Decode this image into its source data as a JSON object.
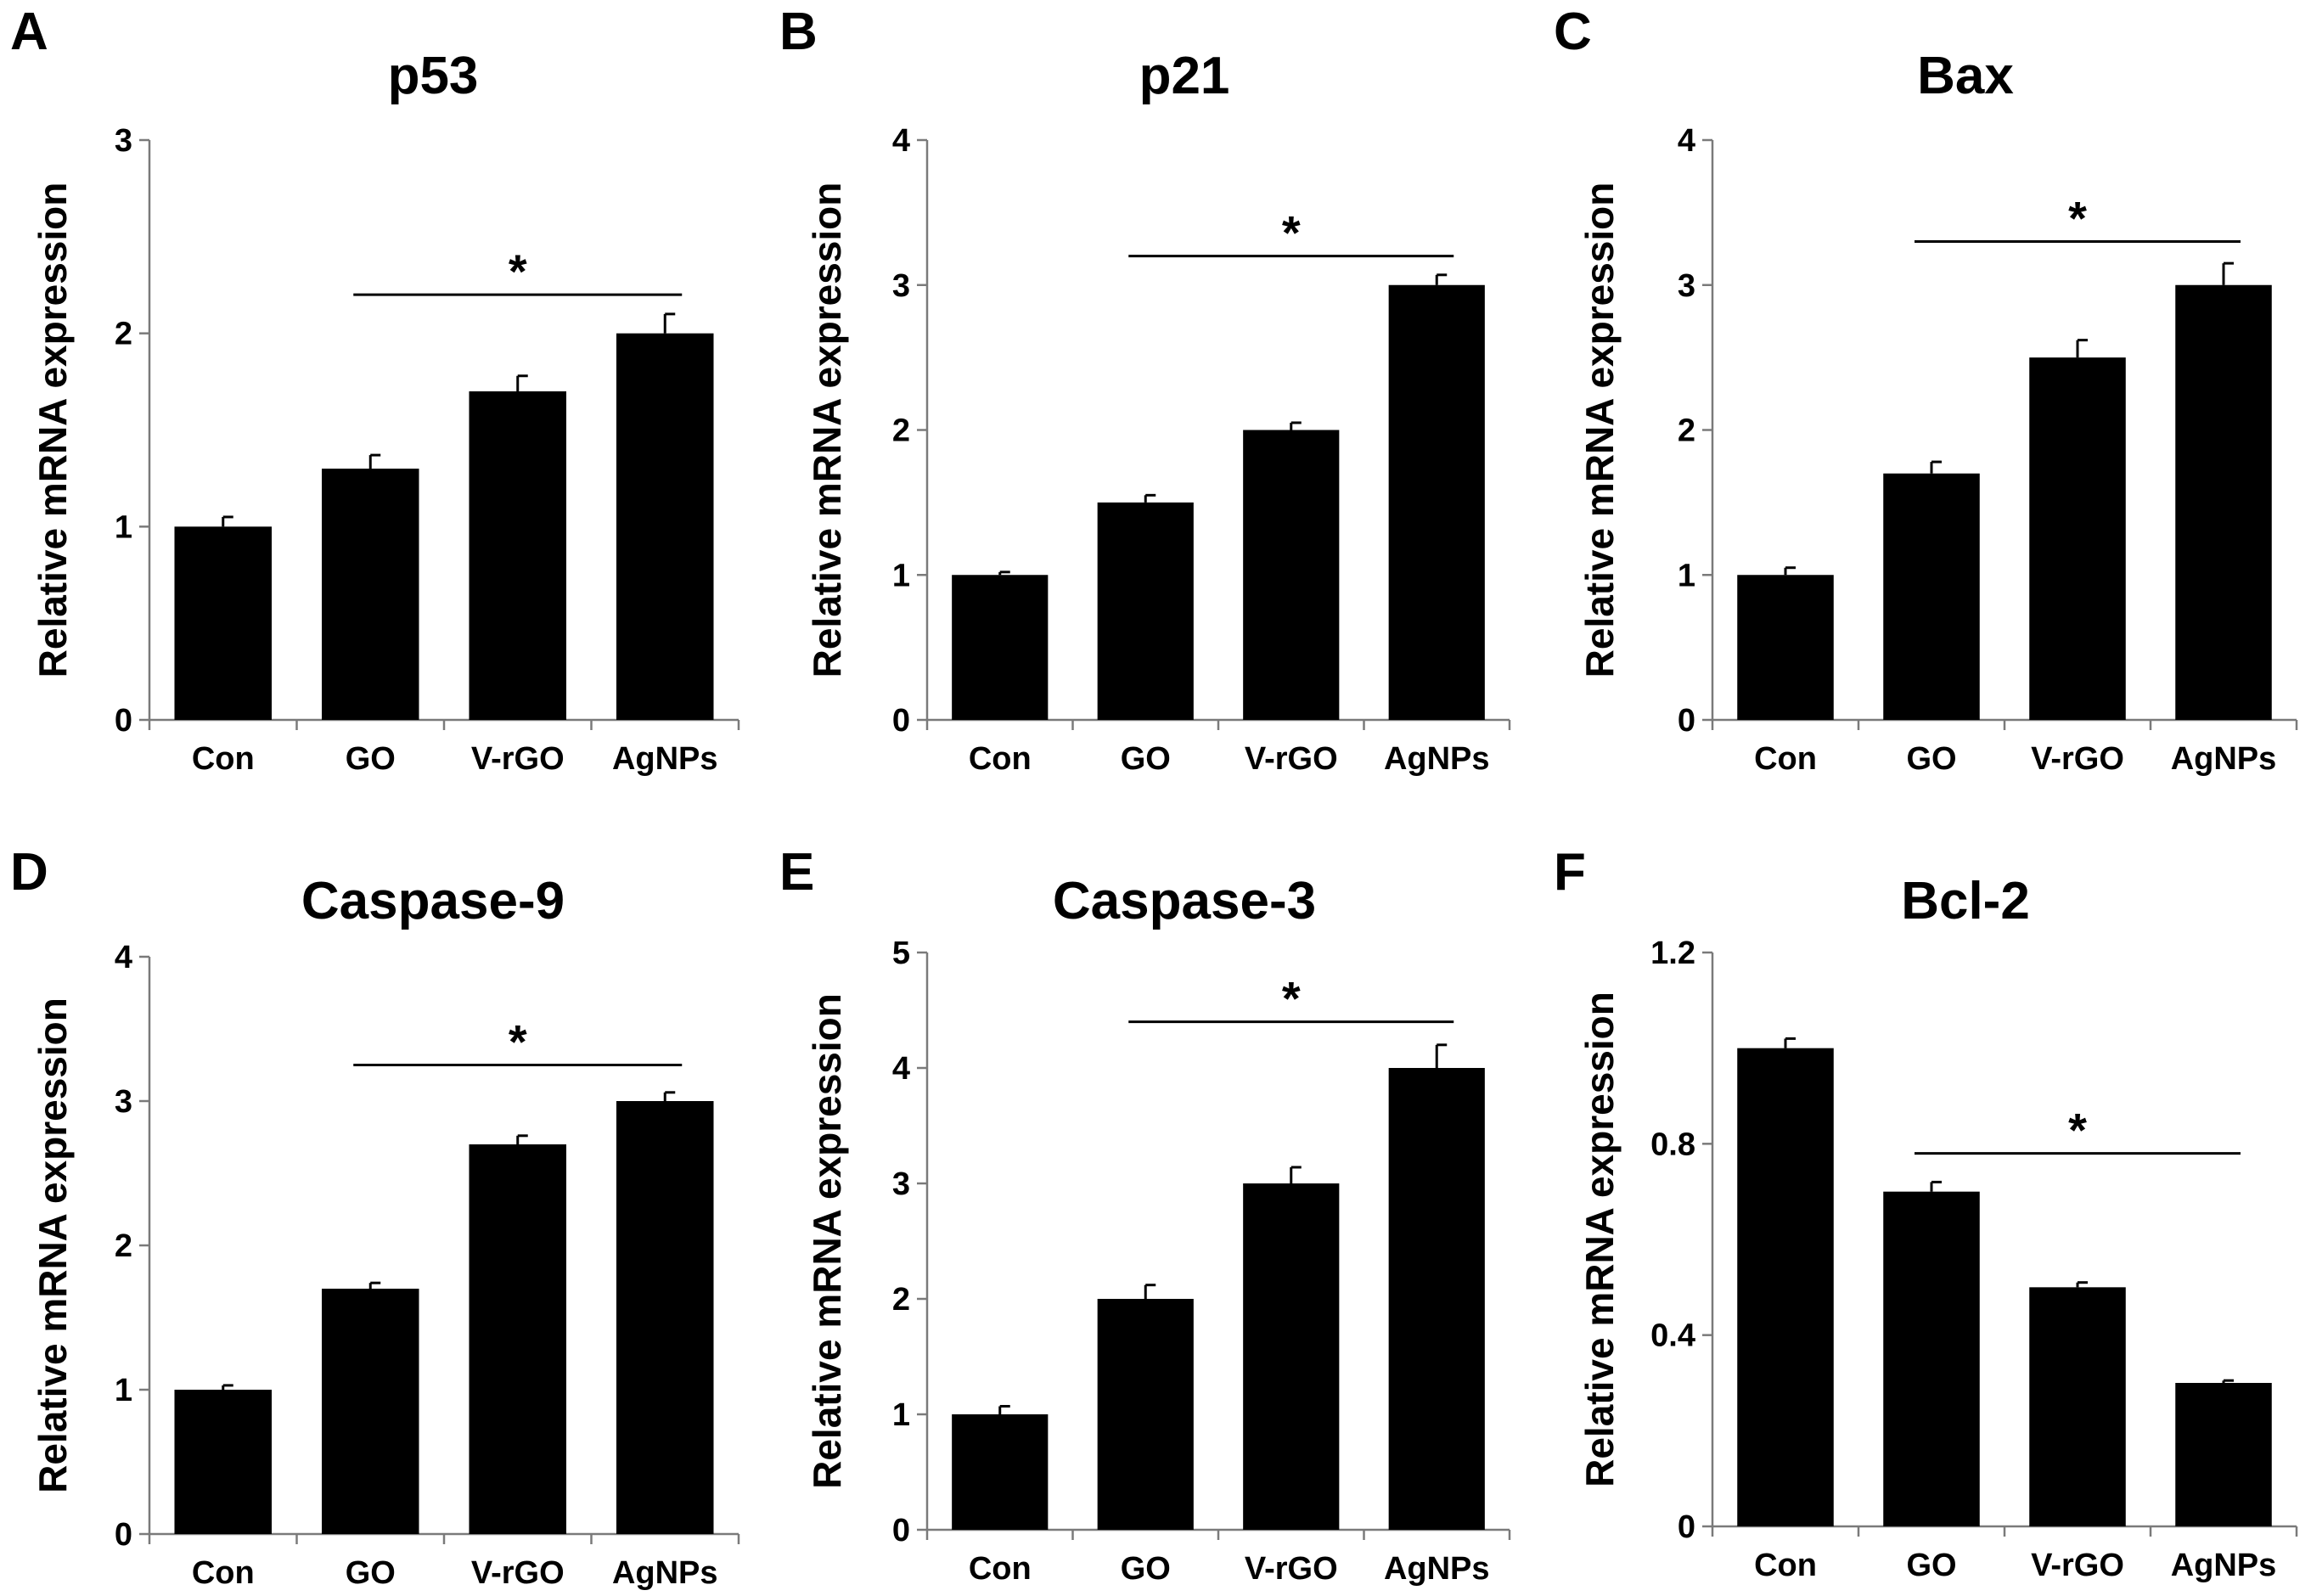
{
  "chart_data": [
    {
      "panel": "A",
      "type": "bar",
      "title": "p53",
      "ylabel": "Relative mRNA expression",
      "categories": [
        "Con",
        "GO",
        "V-rGO",
        "AgNPs"
      ],
      "values": [
        1.0,
        1.3,
        1.7,
        2.0
      ],
      "errors": [
        0.05,
        0.07,
        0.08,
        0.1
      ],
      "ylim": [
        0,
        3
      ],
      "yticks": [
        "0",
        "1",
        "2",
        "3"
      ],
      "significance": {
        "label": "*",
        "from": "GO",
        "to": "AgNPs",
        "y": 2.2
      }
    },
    {
      "panel": "B",
      "type": "bar",
      "title": "p21",
      "ylabel": "Relative mRNA expression",
      "categories": [
        "Con",
        "GO",
        "V-rGO",
        "AgNPs"
      ],
      "values": [
        1.0,
        1.5,
        2.0,
        3.0
      ],
      "errors": [
        0.02,
        0.05,
        0.05,
        0.07
      ],
      "ylim": [
        0,
        4
      ],
      "yticks": [
        "0",
        "1",
        "2",
        "3",
        "4"
      ],
      "significance": {
        "label": "*",
        "from": "GO",
        "to": "AgNPs",
        "y": 3.2
      }
    },
    {
      "panel": "C",
      "type": "bar",
      "title": "Bax",
      "ylabel": "Relative mRNA expression",
      "categories": [
        "Con",
        "GO",
        "V-rGO",
        "AgNPs"
      ],
      "values": [
        1.0,
        1.7,
        2.5,
        3.0
      ],
      "errors": [
        0.05,
        0.08,
        0.12,
        0.15
      ],
      "ylim": [
        0,
        4
      ],
      "yticks": [
        "0",
        "1",
        "2",
        "3",
        "4"
      ],
      "significance": {
        "label": "*",
        "from": "GO",
        "to": "AgNPs",
        "y": 3.3
      }
    },
    {
      "panel": "D",
      "type": "bar",
      "title": "Caspase-9",
      "ylabel": "Relative mRNA expression",
      "categories": [
        "Con",
        "GO",
        "V-rGO",
        "AgNPs"
      ],
      "values": [
        1.0,
        1.7,
        2.7,
        3.0
      ],
      "errors": [
        0.03,
        0.04,
        0.06,
        0.06
      ],
      "ylim": [
        0,
        4
      ],
      "yticks": [
        "0",
        "1",
        "2",
        "3",
        "4"
      ],
      "significance": {
        "label": "*",
        "from": "GO",
        "to": "AgNPs",
        "y": 3.25
      }
    },
    {
      "panel": "E",
      "type": "bar",
      "title": "Caspase-3",
      "ylabel": "Relative mRNA expression",
      "categories": [
        "Con",
        "GO",
        "V-rGO",
        "AgNPs"
      ],
      "values": [
        1.0,
        2.0,
        3.0,
        4.0
      ],
      "errors": [
        0.07,
        0.12,
        0.14,
        0.2
      ],
      "ylim": [
        0,
        5
      ],
      "yticks": [
        "0",
        "1",
        "2",
        "3",
        "4",
        "5"
      ],
      "significance": {
        "label": "*",
        "from": "GO",
        "to": "AgNPs",
        "y": 4.4
      }
    },
    {
      "panel": "F",
      "type": "bar",
      "title": "Bcl-2",
      "ylabel": "Relative mRNA expression",
      "categories": [
        "Con",
        "GO",
        "V-rGO",
        "AgNPs"
      ],
      "values": [
        1.0,
        0.7,
        0.5,
        0.3
      ],
      "errors": [
        0.02,
        0.02,
        0.01,
        0.005
      ],
      "ylim": [
        0,
        1.2
      ],
      "yticks": [
        "0",
        "0.4",
        "0.8",
        "1.2"
      ],
      "significance": {
        "label": "*",
        "from": "GO",
        "to": "AgNPs",
        "y": 0.78
      }
    }
  ],
  "colors": {
    "bar": "#000000",
    "axis": "#7a7a7a",
    "text": "#000000"
  }
}
